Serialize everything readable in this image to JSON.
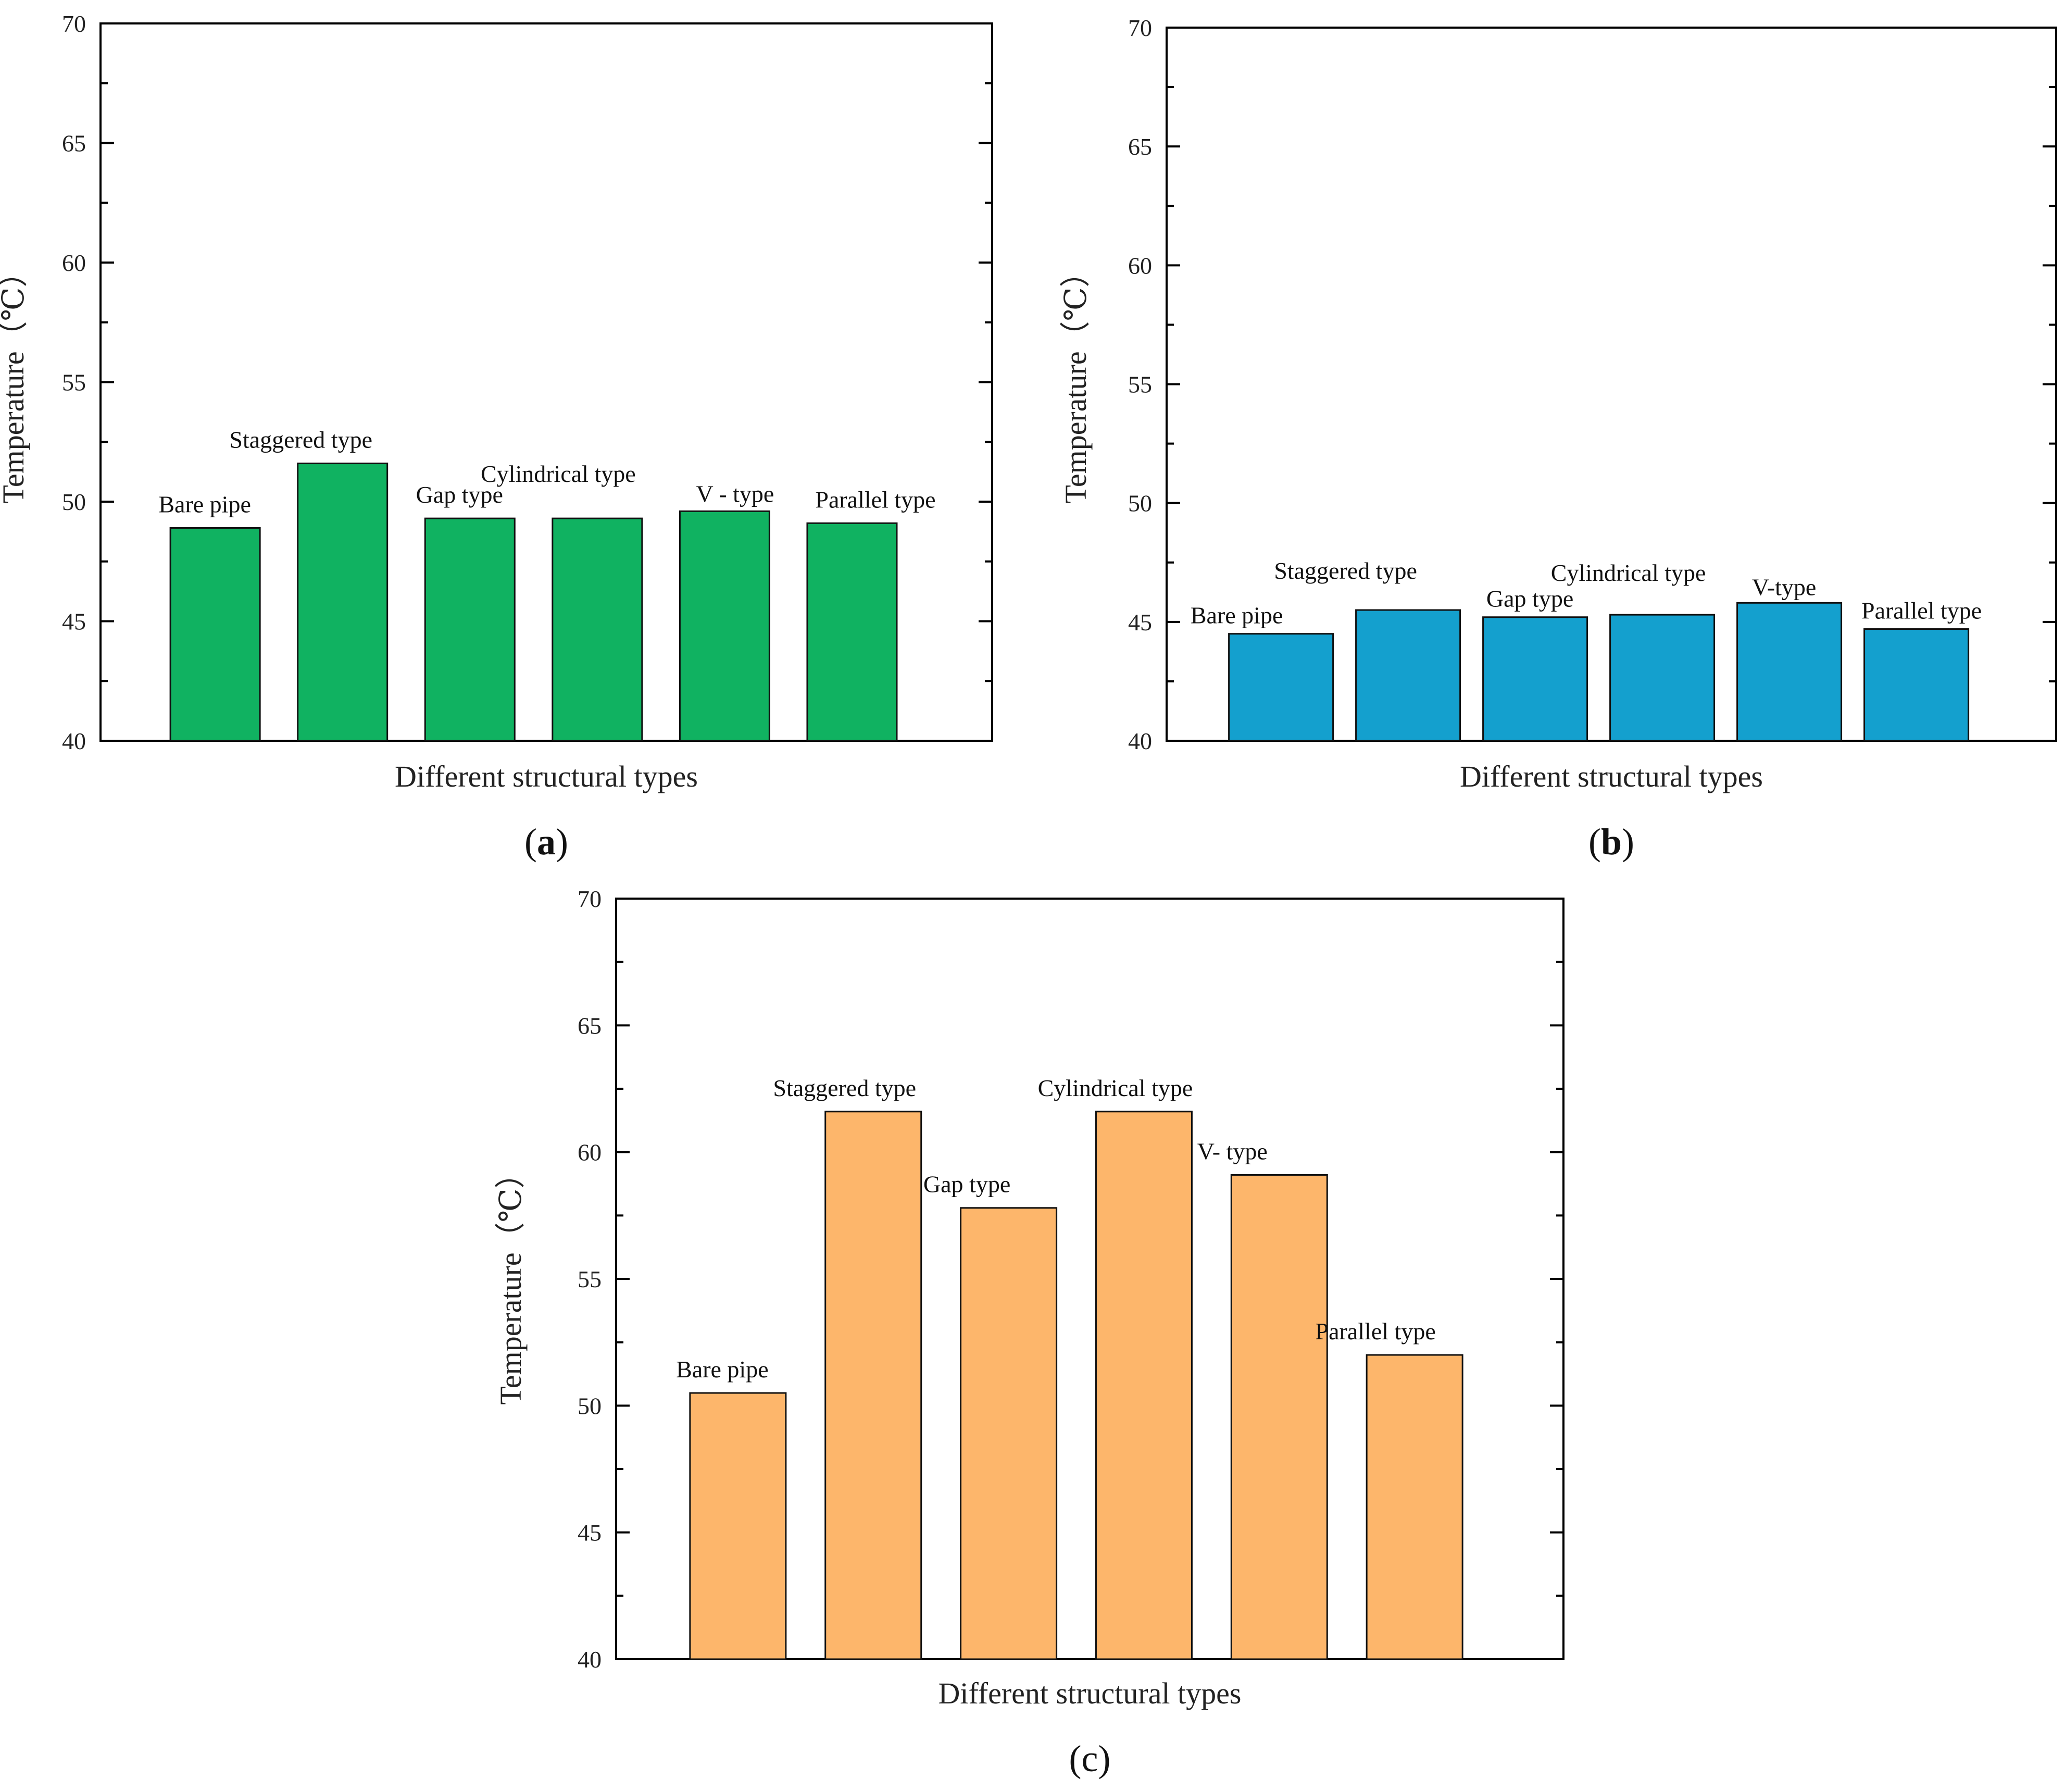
{
  "figure": {
    "panel_labels": [
      "a",
      "b",
      "c"
    ]
  },
  "chart_data": [
    {
      "type": "bar",
      "panel": "a",
      "categories": [
        "Bare pipe",
        "Staggered type",
        "Gap type",
        "Cylindrical type",
        "V - type",
        "Parallel type"
      ],
      "values": [
        48.9,
        51.6,
        49.3,
        49.3,
        49.6,
        49.1
      ],
      "xlabel": "Different structural types",
      "ylabel": "Temperature（℃）",
      "ylim": [
        40,
        70
      ],
      "yticks": [
        "40",
        "45",
        "50",
        "55",
        "60",
        "65",
        "70"
      ],
      "bar_color": "#10b261",
      "grid": false,
      "legend": "none"
    },
    {
      "type": "bar",
      "panel": "b",
      "categories": [
        "Bare pipe",
        "Staggered type",
        "Gap type",
        "Cylindrical type",
        "V-type",
        "Parallel type"
      ],
      "values": [
        44.5,
        45.5,
        45.2,
        45.3,
        45.8,
        44.7
      ],
      "xlabel": "Different structural types",
      "ylabel": "Temperature（℃）",
      "ylim": [
        40,
        70
      ],
      "yticks": [
        "40",
        "45",
        "50",
        "55",
        "60",
        "65",
        "70"
      ],
      "bar_color": "#14a0ce",
      "grid": false,
      "legend": "none"
    },
    {
      "type": "bar",
      "panel": "c",
      "categories": [
        "Bare pipe",
        "Staggered type",
        "Gap type",
        "Cylindrical type",
        "V- type",
        "Parallel type"
      ],
      "values": [
        50.5,
        61.6,
        57.8,
        61.6,
        59.1,
        52.0
      ],
      "xlabel": "Different structural types",
      "ylabel": "Temperature（℃）",
      "ylim": [
        40,
        70
      ],
      "yticks": [
        "40",
        "45",
        "50",
        "55",
        "60",
        "65",
        "70"
      ],
      "bar_color": "#fdb66b",
      "grid": false,
      "legend": "none"
    }
  ]
}
